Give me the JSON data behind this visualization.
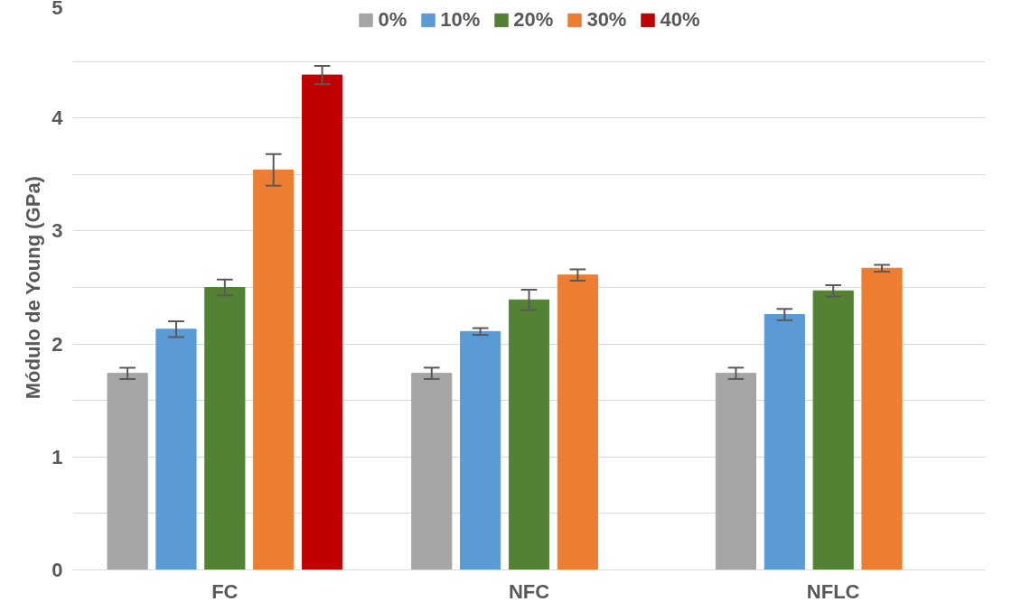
{
  "chart_data": {
    "type": "bar",
    "ylabel": "Módulo de Young (GPa)",
    "categories": [
      "FC",
      "NFC",
      "NFLC"
    ],
    "series": [
      {
        "name": "0%",
        "color": "#a5a5a5",
        "values": [
          1.74,
          1.74,
          1.74
        ],
        "errors": [
          0.05,
          0.05,
          0.05
        ]
      },
      {
        "name": "10%",
        "color": "#5b9bd5",
        "values": [
          2.13,
          2.11,
          2.26
        ],
        "errors": [
          0.07,
          0.03,
          0.05
        ]
      },
      {
        "name": "20%",
        "color": "#548235",
        "values": [
          2.5,
          2.39,
          2.47
        ],
        "errors": [
          0.07,
          0.09,
          0.05
        ]
      },
      {
        "name": "30%",
        "color": "#ed7d31",
        "values": [
          3.54,
          2.61,
          2.67
        ],
        "errors": [
          0.14,
          0.05,
          0.03
        ]
      },
      {
        "name": "40%",
        "color": "#c00000",
        "values": [
          4.38,
          null,
          null
        ],
        "errors": [
          0.08,
          null,
          null
        ]
      }
    ],
    "ylim": [
      0,
      5
    ],
    "yticks": [
      0,
      {
        "value": 0.5,
        "label": null
      },
      1,
      {
        "value": 1.5,
        "label": null
      },
      2,
      {
        "value": 2.5,
        "label": null
      },
      3,
      {
        "value": 3.5,
        "label": null
      },
      4,
      {
        "value": 4.5,
        "label": null
      },
      5
    ],
    "grid": "y",
    "legend": "top"
  }
}
